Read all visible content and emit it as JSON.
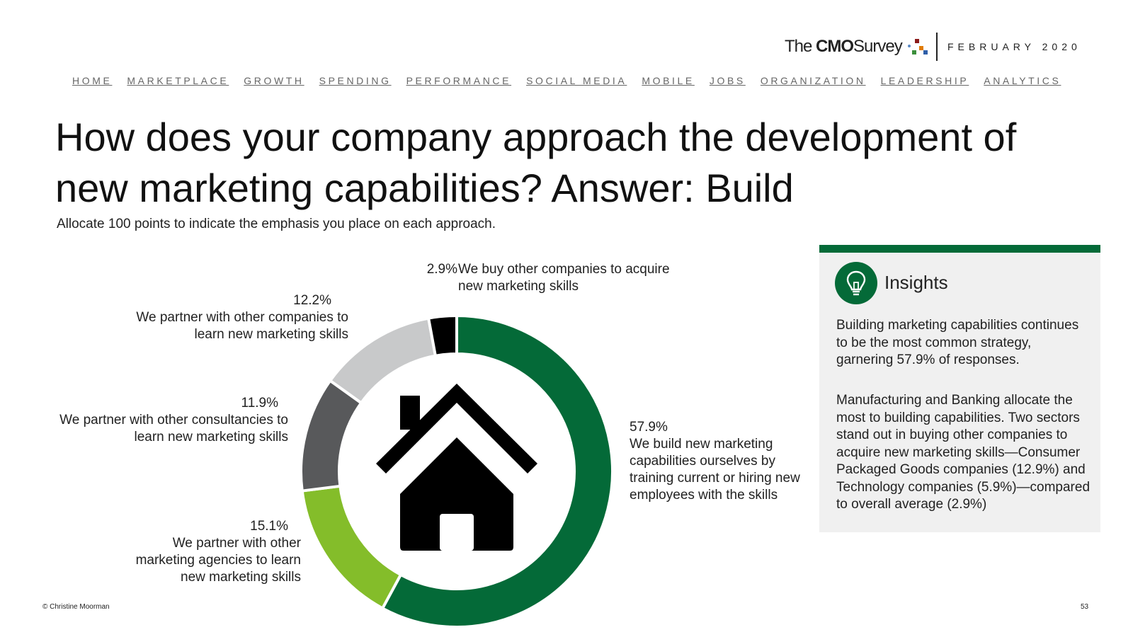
{
  "header": {
    "logo": {
      "the": "The",
      "brand": "CMO",
      "survey": "Survey"
    },
    "date": "FEBRUARY 2020"
  },
  "nav": [
    "HOME",
    "MARKETPLACE",
    "GROWTH",
    "SPENDING",
    "PERFORMANCE",
    "SOCIAL MEDIA",
    "MOBILE",
    "JOBS",
    "ORGANIZATION",
    "LEADERSHIP",
    "ANALYTICS"
  ],
  "page": {
    "title": "How does your company approach the development of new marketing capabilities? Answer: Build",
    "subtitle": "Allocate 100 points to indicate the emphasis you place on each approach."
  },
  "chart_data": {
    "type": "pie",
    "donut": true,
    "center_icon": "house-icon",
    "slices": [
      {
        "label": "We build new marketing capabilities ourselves by training current or hiring new employees with the skills",
        "value": 57.9,
        "value_label": "57.9%",
        "color": "#046a38"
      },
      {
        "label": "We partner with other marketing agencies to learn new marketing skills",
        "value": 15.1,
        "value_label": "15.1%",
        "color": "#84bd2a"
      },
      {
        "label": "We partner with other consultancies to learn new marketing skills",
        "value": 11.9,
        "value_label": "11.9%",
        "color": "#58595b"
      },
      {
        "label": "We partner with other companies to learn new marketing skills",
        "value": 12.2,
        "value_label": "12.2%",
        "color": "#c8c9ca"
      },
      {
        "label": "We buy other companies to acquire new marketing skills",
        "value": 2.9,
        "value_label": "2.9%",
        "color": "#000000"
      }
    ]
  },
  "insights": {
    "icon": "lightbulb-icon",
    "accent": "#046a38",
    "title": "Insights",
    "p1": "Building marketing capabilities continues to be the most common strategy, garnering 57.9% of responses.",
    "p2": "Manufacturing and Banking allocate the most to building capabilities. Two sectors stand out in buying other companies to acquire new marketing skills—Consumer Packaged Goods companies (12.9%) and Technology companies (5.9%)—compared to overall average (2.9%)"
  },
  "footer": {
    "copyright": "© Christine Moorman",
    "page_number": "53"
  }
}
